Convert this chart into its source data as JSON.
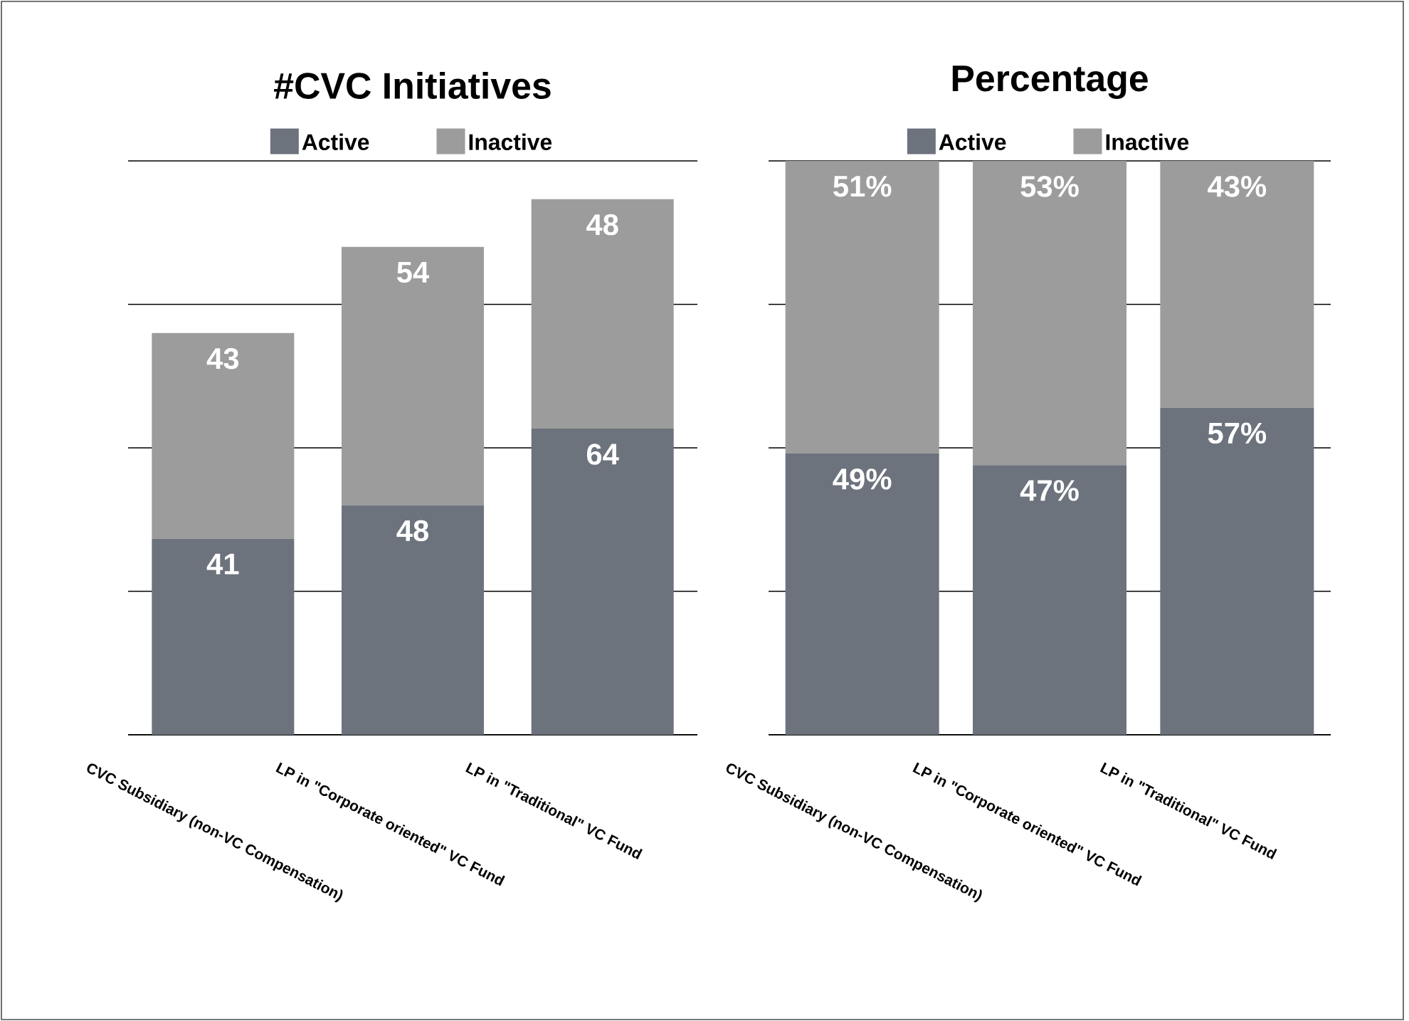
{
  "chart_data": [
    {
      "type": "bar",
      "stacked": true,
      "title": "#CVC Initiatives",
      "categories": [
        "CVC Subsidiary (non-VC Compensation)",
        "LP in \"Corporate oriented\" VC Fund",
        "LP in \"Traditional\" VC Fund"
      ],
      "series": [
        {
          "name": "Active",
          "color": "#6d737d",
          "values": [
            41,
            48,
            64
          ]
        },
        {
          "name": "Inactive",
          "color": "#9c9c9c",
          "values": [
            43,
            54,
            48
          ]
        }
      ],
      "ylim": [
        0,
        120
      ],
      "yticks": [
        0,
        30,
        60,
        90,
        120
      ],
      "grid": "y",
      "tick_labels": "x",
      "legend": "top",
      "data_labels": true
    },
    {
      "type": "bar",
      "stacked": true,
      "title": "Percentage",
      "categories": [
        "CVC Subsidiary (non-VC Compensation)",
        "LP in \"Corporate oriented\" VC Fund",
        "LP in \"Traditional\" VC Fund"
      ],
      "series": [
        {
          "name": "Active",
          "color": "#6d737d",
          "values": [
            49,
            47,
            57
          ],
          "value_labels": [
            "49%",
            "47%",
            "57%"
          ]
        },
        {
          "name": "Inactive",
          "color": "#9c9c9c",
          "values": [
            51,
            53,
            43
          ],
          "value_labels": [
            "51%",
            "53%",
            "43%"
          ]
        }
      ],
      "ylim": [
        0,
        100
      ],
      "yticks": [
        0,
        25,
        50,
        75,
        100
      ],
      "grid": "y",
      "tick_labels": "x",
      "legend": "top"
    }
  ]
}
